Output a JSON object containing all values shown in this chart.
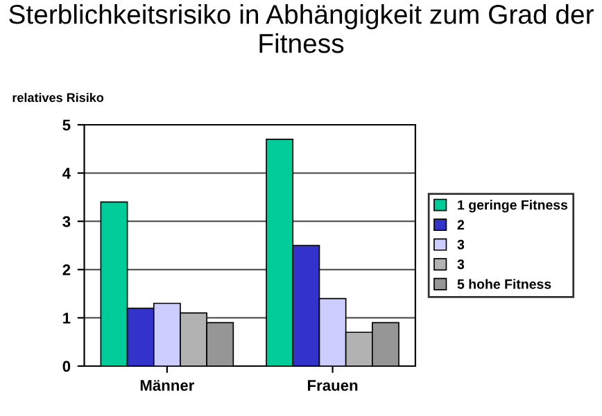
{
  "chart_data": {
    "type": "bar",
    "title": "Sterblichkeitsrisiko in Abhängigkeit zum Grad der Fitness",
    "ylabel": "relatives Risiko",
    "categories": [
      "Männer",
      "Frauen"
    ],
    "series": [
      {
        "name": "1 geringe Fitness",
        "color": "#00cc99",
        "values": [
          3.4,
          4.7
        ]
      },
      {
        "name": "2",
        "color": "#3333cc",
        "values": [
          1.2,
          2.5
        ]
      },
      {
        "name": "3",
        "color": "#ccccff",
        "values": [
          1.3,
          1.4
        ]
      },
      {
        "name": "3",
        "color": "#b2b2b2",
        "values": [
          1.1,
          0.7
        ]
      },
      {
        "name": "5 hohe Fitness",
        "color": "#969696",
        "values": [
          0.9,
          0.9
        ]
      }
    ],
    "ylim": [
      0,
      5
    ],
    "yticks": [
      0,
      1,
      2,
      3,
      4,
      5
    ],
    "grid": "y",
    "legend": "right"
  }
}
